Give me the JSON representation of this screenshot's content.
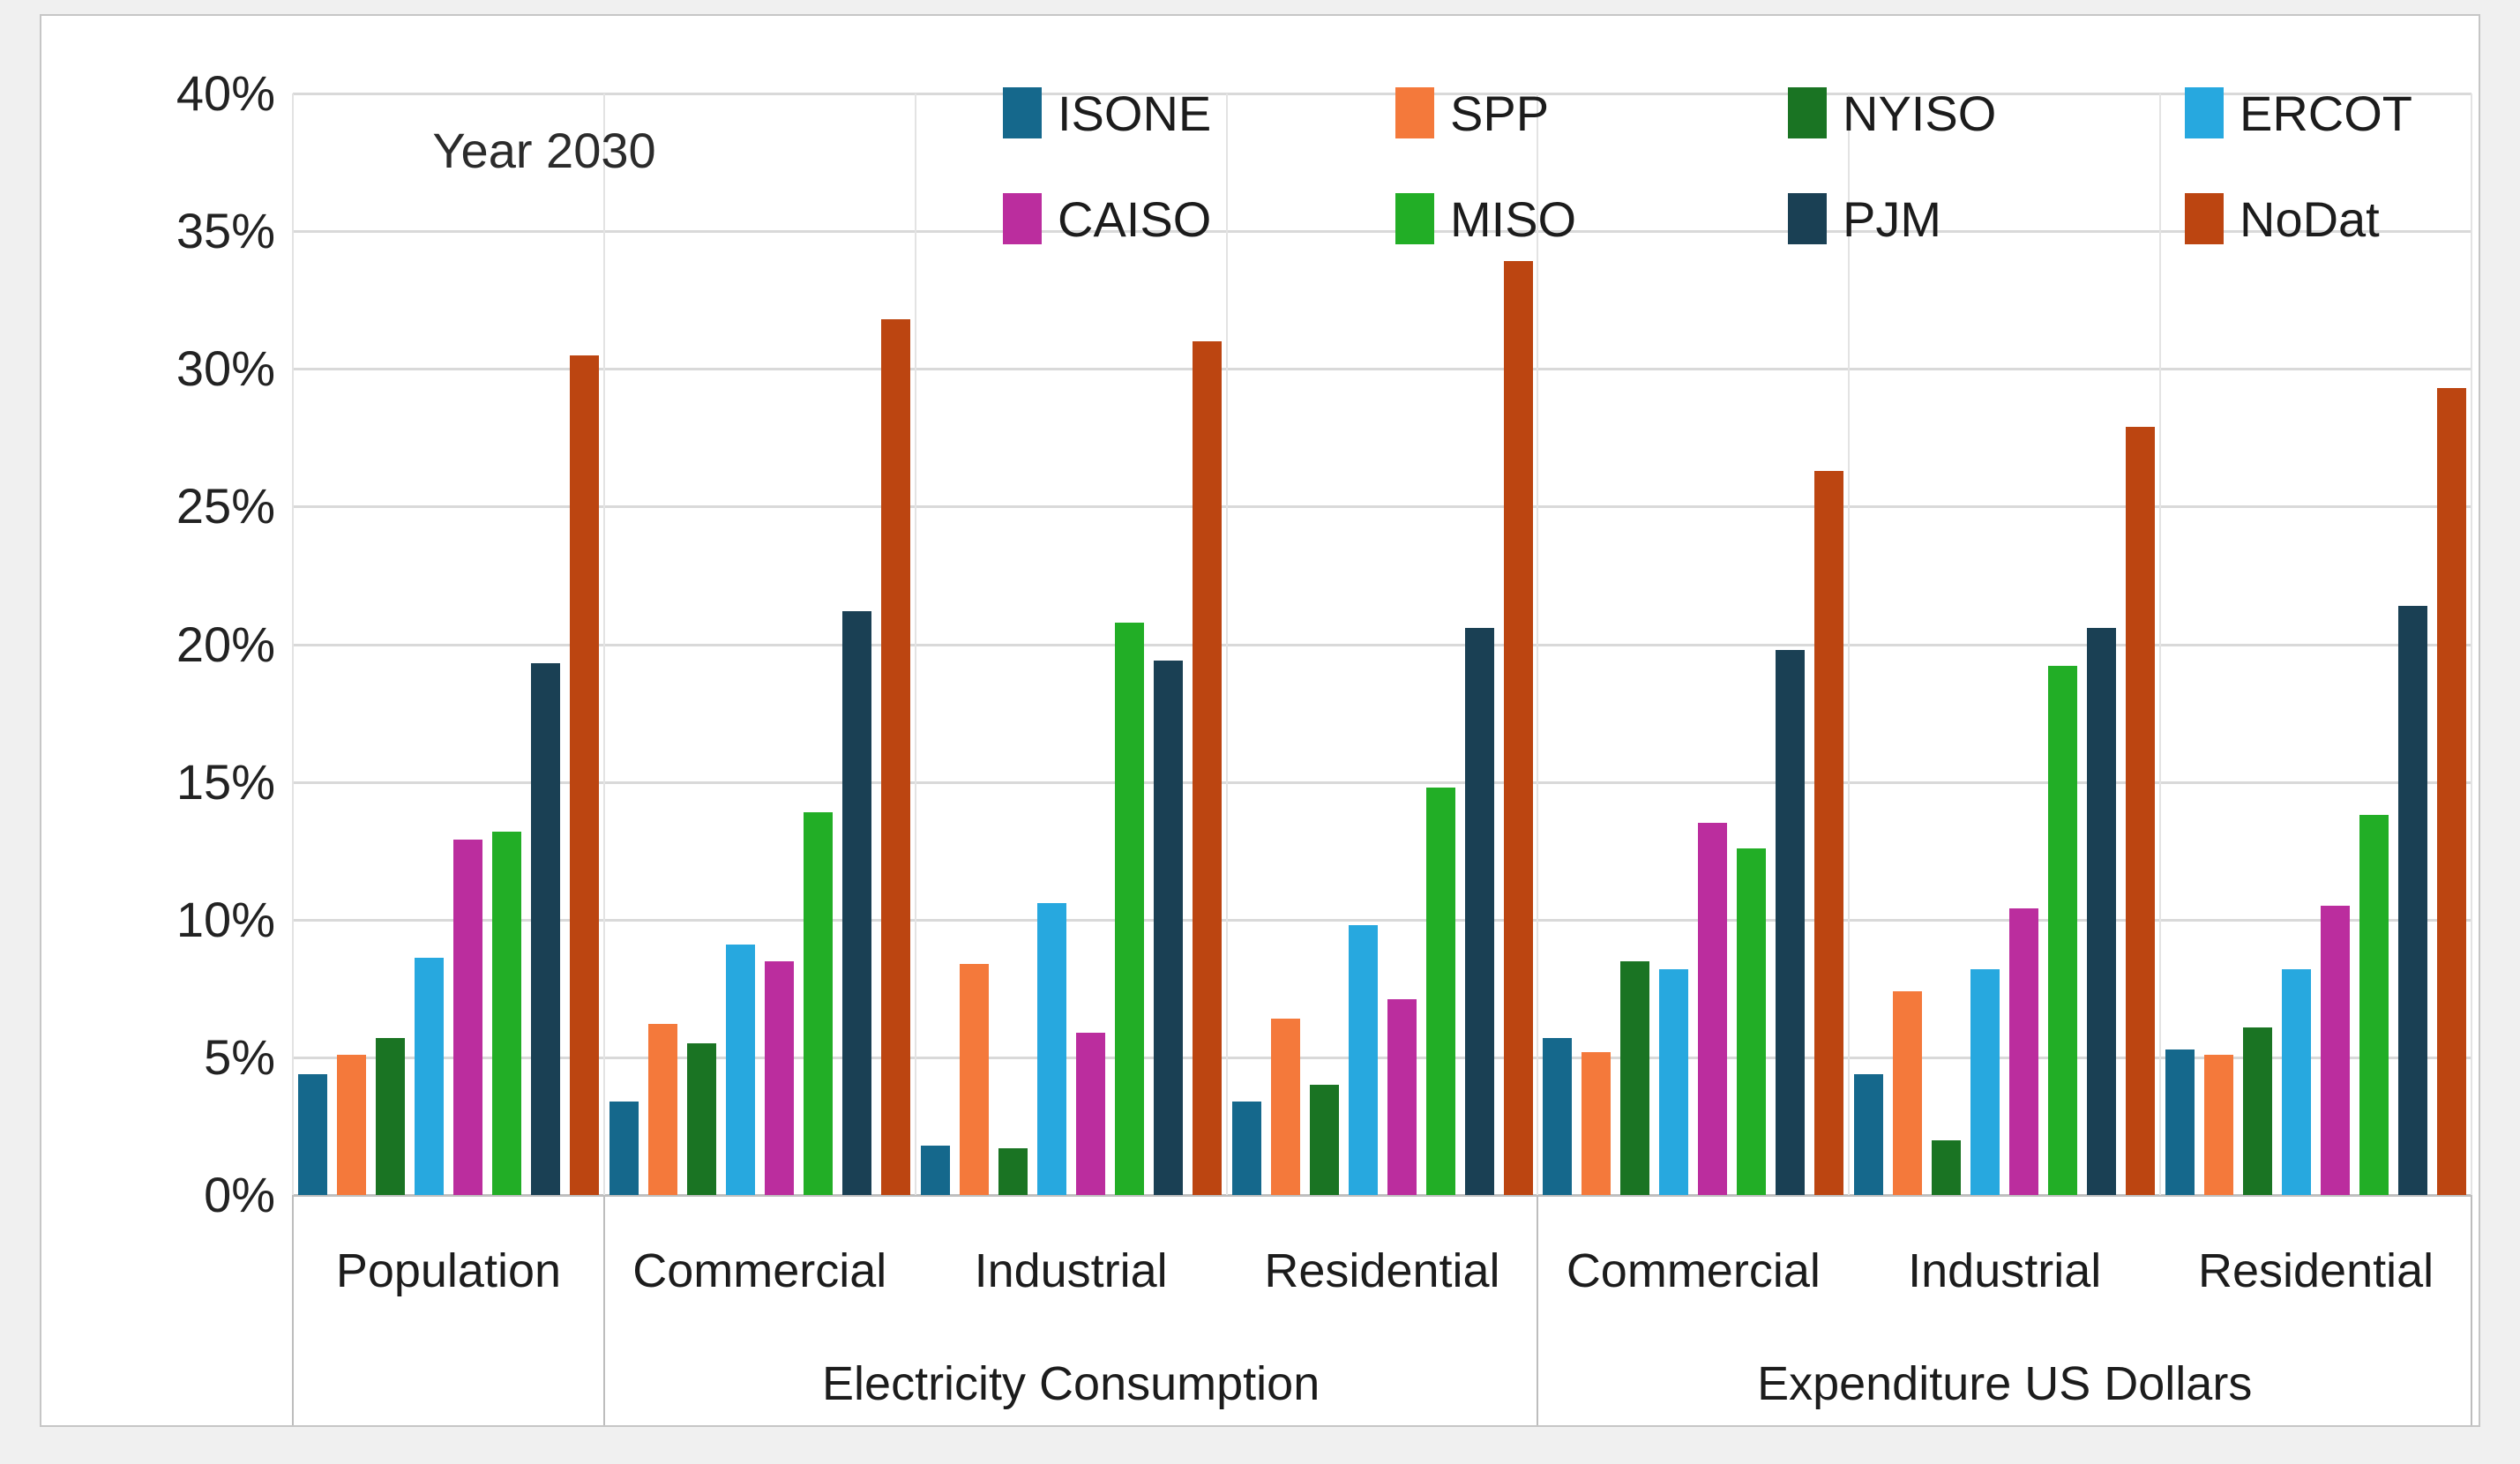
{
  "title": "Year 2030",
  "axes": {
    "yticks": [
      "0%",
      "5%",
      "10%",
      "15%",
      "20%",
      "25%",
      "30%",
      "35%",
      "40%"
    ],
    "group_labels": [
      "Population",
      "Commercial",
      "Industrial",
      "Residential",
      "Commercial",
      "Industrial",
      "Residential"
    ],
    "super_groups": [
      {
        "label": "",
        "start": 0,
        "end": 0
      },
      {
        "label": "Electricity Consumption",
        "start": 1,
        "end": 3
      },
      {
        "label": "Expenditure US Dollars",
        "start": 4,
        "end": 6
      }
    ]
  },
  "legend": {
    "rows": [
      [
        "ISONE",
        "SPP",
        "NYISO",
        "ERCOT"
      ],
      [
        "CAISO",
        "MISO",
        "PJM",
        "NoDat"
      ]
    ]
  },
  "colors": {
    "gridline": "#d9d9d9",
    "axis": "#bfbfbf",
    "ISONE": "#15688C",
    "SPP": "#F4793B",
    "NYISO": "#1A7423",
    "ERCOT": "#27A8DF",
    "CAISO": "#BB2D9E",
    "MISO": "#22AE26",
    "PJM": "#1A4054",
    "NoDat": "#BC4511"
  },
  "chart_data": {
    "type": "bar",
    "title": "Year 2030",
    "xlabel": "",
    "ylabel": "",
    "ylim": [
      0,
      40
    ],
    "ytick_step": 5,
    "grid": true,
    "legend_position": "top-center-two-rows",
    "categories": [
      "Population",
      "Electricity Consumption - Commercial",
      "Electricity Consumption - Industrial",
      "Electricity Consumption - Residential",
      "Expenditure US Dollars - Commercial",
      "Expenditure US Dollars - Industrial",
      "Expenditure US Dollars - Residential"
    ],
    "unit": "percent",
    "series": [
      {
        "name": "ISONE",
        "color": "#15688C",
        "values": [
          4.4,
          3.4,
          1.8,
          3.4,
          5.7,
          4.4,
          5.3
        ]
      },
      {
        "name": "SPP",
        "color": "#F4793B",
        "values": [
          5.1,
          6.2,
          8.4,
          6.4,
          5.2,
          7.4,
          5.1
        ]
      },
      {
        "name": "NYISO",
        "color": "#1A7423",
        "values": [
          5.7,
          5.5,
          1.7,
          4.0,
          8.5,
          2.0,
          6.1
        ]
      },
      {
        "name": "ERCOT",
        "color": "#27A8DF",
        "values": [
          8.6,
          9.1,
          10.6,
          9.8,
          8.2,
          8.2,
          8.2
        ]
      },
      {
        "name": "CAISO",
        "color": "#BB2D9E",
        "values": [
          12.9,
          8.5,
          5.9,
          7.1,
          13.5,
          10.4,
          10.5
        ]
      },
      {
        "name": "MISO",
        "color": "#22AE26",
        "values": [
          13.2,
          13.9,
          20.8,
          14.8,
          12.6,
          19.2,
          13.8
        ]
      },
      {
        "name": "PJM",
        "color": "#1A4054",
        "values": [
          19.3,
          21.2,
          19.4,
          20.6,
          19.8,
          20.6,
          21.4
        ]
      },
      {
        "name": "NoDat",
        "color": "#BC4511",
        "values": [
          30.5,
          31.8,
          31.0,
          33.9,
          26.3,
          27.9,
          29.3
        ]
      }
    ]
  }
}
